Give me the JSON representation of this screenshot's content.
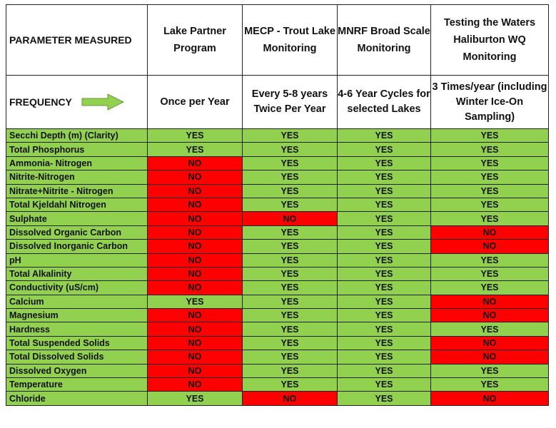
{
  "headers": {
    "parameter": "PARAMETER MEASURED",
    "programs": [
      "Lake Partner Program",
      "MECP - Trout Lake Monitoring",
      "MNRF Broad Scale Monitoring",
      "Testing the Waters Haliburton WQ Monitoring"
    ]
  },
  "frequency": {
    "label": "FREQUENCY",
    "arrow_icon": "right-arrow-icon",
    "values": [
      "Once per Year",
      "Every 5-8 years Twice Per Year",
      "4-6 Year Cycles for selected Lakes",
      "3 Times/year (including Winter Ice-On Sampling)"
    ]
  },
  "colors": {
    "yes": "#92d050",
    "no": "#ff0000"
  },
  "rows": [
    {
      "param": "Secchi Depth (m) (Clarity)",
      "values": [
        "YES",
        "YES",
        "YES",
        "YES"
      ]
    },
    {
      "param": "Total Phosphorus",
      "values": [
        "YES",
        "YES",
        "YES",
        "YES"
      ]
    },
    {
      "param": "Ammonia- Nitrogen",
      "values": [
        "NO",
        "YES",
        "YES",
        "YES"
      ]
    },
    {
      "param": "Nitrite-Nitrogen",
      "values": [
        "NO",
        "YES",
        "YES",
        "YES"
      ]
    },
    {
      "param": "Nitrate+Nitrite - Nitrogen",
      "values": [
        "NO",
        "YES",
        "YES",
        "YES"
      ]
    },
    {
      "param": "Total Kjeldahl Nitrogen",
      "values": [
        "NO",
        "YES",
        "YES",
        "YES"
      ]
    },
    {
      "param": "Sulphate",
      "values": [
        "NO",
        "NO",
        "YES",
        "YES"
      ]
    },
    {
      "param": "Dissolved Organic Carbon",
      "values": [
        "NO",
        "YES",
        "YES",
        "NO"
      ]
    },
    {
      "param": "Dissolved Inorganic Carbon",
      "values": [
        "NO",
        "YES",
        "YES",
        "NO"
      ]
    },
    {
      "param": "pH",
      "values": [
        "NO",
        "YES",
        "YES",
        "YES"
      ]
    },
    {
      "param": "Total Alkalinity",
      "values": [
        "NO",
        "YES",
        "YES",
        "YES"
      ]
    },
    {
      "param": "Conductivity (uS/cm)",
      "values": [
        "NO",
        "YES",
        "YES",
        "YES"
      ]
    },
    {
      "param": "Calcium",
      "values": [
        "YES",
        "YES",
        "YES",
        "NO"
      ]
    },
    {
      "param": "Magnesium",
      "values": [
        "NO",
        "YES",
        "YES",
        "NO"
      ]
    },
    {
      "param": "Hardness",
      "values": [
        "NO",
        "YES",
        "YES",
        "YES"
      ]
    },
    {
      "param": "Total Suspended Solids",
      "values": [
        "NO",
        "YES",
        "YES",
        "NO"
      ]
    },
    {
      "param": "Total Dissolved Solids",
      "values": [
        "NO",
        "YES",
        "YES",
        "NO"
      ]
    },
    {
      "param": "Dissolved Oxygen",
      "values": [
        "NO",
        "YES",
        "YES",
        "YES"
      ]
    },
    {
      "param": "Temperature",
      "values": [
        "NO",
        "YES",
        "YES",
        "YES"
      ]
    },
    {
      "param": "Chloride",
      "values": [
        "YES",
        "NO",
        "YES",
        "NO"
      ]
    }
  ]
}
